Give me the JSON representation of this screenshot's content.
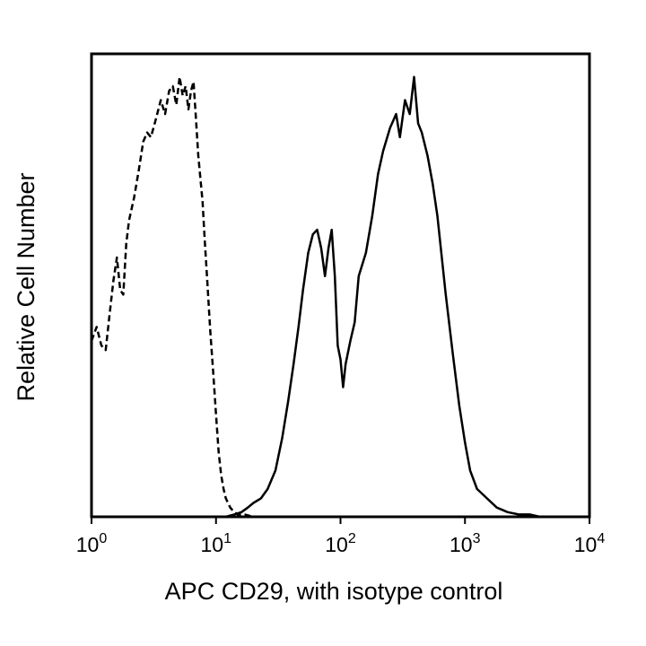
{
  "chart_data": {
    "type": "line",
    "title": "",
    "xlabel": "APC CD29, with isotype control",
    "ylabel": "Relative Cell Number",
    "x_scale": "log",
    "xlim": [
      1,
      10000
    ],
    "ylim": [
      0,
      100
    ],
    "grid": false,
    "x_ticks": [
      {
        "value": 1,
        "base": "10",
        "exp": "0"
      },
      {
        "value": 10,
        "base": "10",
        "exp": "1"
      },
      {
        "value": 100,
        "base": "10",
        "exp": "2"
      },
      {
        "value": 1000,
        "base": "10",
        "exp": "3"
      },
      {
        "value": 10000,
        "base": "10",
        "exp": "4"
      }
    ],
    "series": [
      {
        "style": "dashed",
        "color": "#000000",
        "x": [
          1.0,
          1.1,
          1.2,
          1.3,
          1.4,
          1.5,
          1.6,
          1.7,
          1.8,
          1.9,
          2.0,
          2.2,
          2.4,
          2.6,
          2.8,
          3.0,
          3.3,
          3.6,
          3.9,
          4.2,
          4.5,
          4.8,
          5.1,
          5.4,
          5.7,
          6.0,
          6.3,
          6.6,
          6.9,
          7.2,
          7.5,
          7.8,
          8.1,
          8.5,
          9.0,
          9.5,
          10.0,
          10.5,
          11.0,
          11.5,
          12.0,
          13.0,
          14.0,
          15.0,
          17.0,
          20.0,
          25.0,
          30.0,
          40.0,
          60.0,
          80.0,
          100.0
        ],
        "y": [
          38,
          41,
          37,
          36,
          44,
          51,
          56,
          49,
          48,
          59,
          64,
          69,
          75,
          81,
          83,
          82,
          86,
          90,
          87,
          92,
          93,
          89,
          95,
          91,
          93,
          88,
          92,
          94,
          86,
          78,
          73,
          68,
          60,
          51,
          40,
          31,
          22,
          14,
          9,
          6,
          4,
          2,
          1,
          0.5,
          0.5,
          0,
          0,
          0,
          0,
          0,
          0,
          0
        ]
      },
      {
        "style": "solid",
        "color": "#000000",
        "x": [
          10.0,
          12.0,
          14.0,
          16.0,
          18.0,
          20.0,
          23.0,
          26.0,
          30.0,
          34.0,
          38.0,
          42.0,
          46.0,
          50.0,
          55.0,
          60.0,
          65.0,
          70.0,
          75.0,
          80.0,
          85.0,
          90.0,
          95.0,
          100.0,
          105.0,
          110.0,
          120.0,
          130.0,
          140.0,
          160.0,
          180.0,
          200.0,
          220.0,
          250.0,
          280.0,
          300.0,
          330.0,
          360.0,
          390.0,
          420.0,
          450.0,
          500.0,
          550.0,
          600.0,
          700.0,
          800.0,
          900.0,
          1000.0,
          1100.0,
          1250.0,
          1500.0,
          1800.0,
          2200.0,
          2700.0,
          3300.0,
          4000.0
        ],
        "y": [
          0,
          0,
          0.5,
          1,
          2,
          3,
          4,
          6,
          10,
          17,
          25,
          33,
          41,
          49,
          57,
          61,
          62,
          58,
          52,
          58,
          62,
          52,
          37,
          34,
          28,
          33,
          38,
          42,
          52,
          57,
          65,
          74,
          79,
          84,
          87,
          82,
          90,
          87,
          95,
          85,
          83,
          78,
          72,
          65,
          48,
          35,
          24,
          16,
          10,
          6,
          4,
          2,
          1,
          0.5,
          0.5,
          0
        ]
      }
    ]
  }
}
